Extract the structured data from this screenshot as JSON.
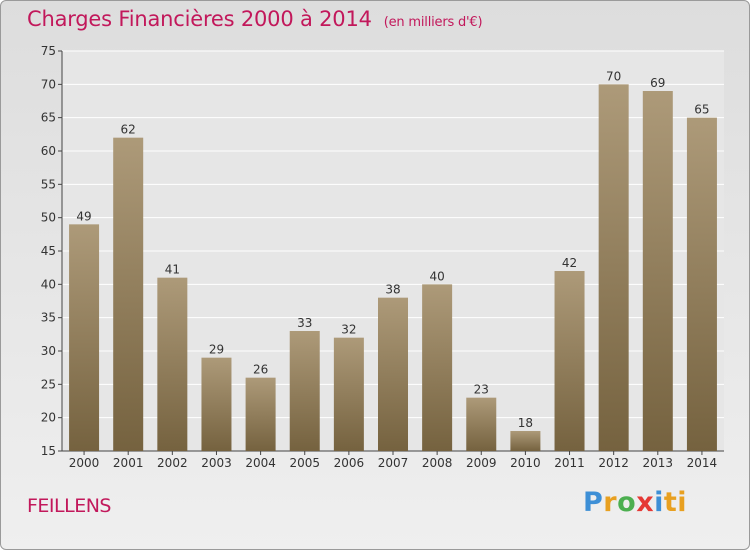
{
  "title": {
    "main": "Charges Financières 2000 à 2014",
    "sub": "(en milliers d'€)"
  },
  "commune": "FEILLENS",
  "logo": {
    "letters": [
      "P",
      "r",
      "o",
      "x",
      "i",
      "ti"
    ],
    "colors": [
      "#3d8fd6",
      "#e8a020",
      "#4caf50",
      "#e53935",
      "#3d8fd6",
      "#e8a020"
    ]
  },
  "colors": {
    "title": "#c2185b",
    "bar_top": "#ad9a79",
    "bar_bottom": "#75623f",
    "grid": "#ffffff",
    "axis": "#444444"
  },
  "chart_data": {
    "type": "bar",
    "title": "Charges Financières 2000 à 2014",
    "subtitle": "(en milliers d'€)",
    "categories": [
      "2000",
      "2001",
      "2002",
      "2003",
      "2004",
      "2005",
      "2006",
      "2007",
      "2008",
      "2009",
      "2010",
      "2011",
      "2012",
      "2013",
      "2014"
    ],
    "values": [
      49,
      62,
      41,
      29,
      26,
      33,
      32,
      38,
      40,
      23,
      18,
      42,
      70,
      69,
      65
    ],
    "yticks": [
      15,
      20,
      25,
      30,
      35,
      40,
      45,
      50,
      55,
      60,
      65,
      70,
      75
    ],
    "ylim": [
      15,
      75
    ],
    "grid": true,
    "data_labels": true,
    "xlabel": "",
    "ylabel": ""
  }
}
